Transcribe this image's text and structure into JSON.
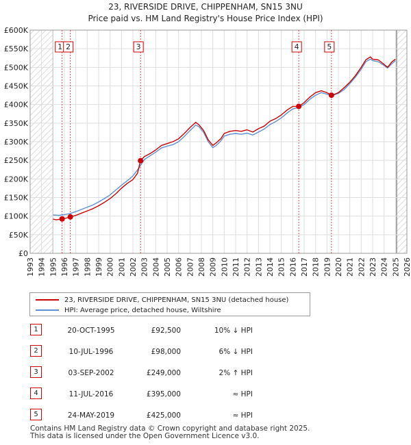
{
  "chart_data": {
    "type": "line",
    "title": [
      "23, RIVERSIDE DRIVE, CHIPPENHAM, SN15 3NU",
      "Price paid vs. HM Land Registry's House Price Index (HPI)"
    ],
    "xlim": [
      1993,
      2026
    ],
    "ylim": [
      0,
      600000
    ],
    "x_ticks": [
      "1993",
      "1994",
      "1995",
      "1996",
      "1997",
      "1998",
      "1999",
      "2000",
      "2001",
      "2002",
      "2003",
      "2004",
      "2005",
      "2006",
      "2007",
      "2008",
      "2009",
      "2010",
      "2011",
      "2012",
      "2013",
      "2014",
      "2015",
      "2016",
      "2017",
      "2018",
      "2019",
      "2020",
      "2021",
      "2022",
      "2023",
      "2024",
      "2025",
      "2026"
    ],
    "y_ticks": [
      {
        "value": 0,
        "label": "£0"
      },
      {
        "value": 50000,
        "label": "£50K"
      },
      {
        "value": 100000,
        "label": "£100K"
      },
      {
        "value": 150000,
        "label": "£150K"
      },
      {
        "value": 200000,
        "label": "£200K"
      },
      {
        "value": 250000,
        "label": "£250K"
      },
      {
        "value": 300000,
        "label": "£300K"
      },
      {
        "value": 350000,
        "label": "£350K"
      },
      {
        "value": 400000,
        "label": "£400K"
      },
      {
        "value": 450000,
        "label": "£450K"
      },
      {
        "value": 500000,
        "label": "£500K"
      },
      {
        "value": 550000,
        "label": "£550K"
      },
      {
        "value": 600000,
        "label": "£600K"
      }
    ],
    "hatched_before": 1995.0,
    "hatched_after": 2025.1,
    "series": [
      {
        "name": "23, RIVERSIDE DRIVE, CHIPPENHAM, SN15 3NU (detached house)",
        "color": "#cc0000",
        "x": [
          1995.0,
          1995.3,
          1995.8,
          1996.2,
          1996.52,
          1997.0,
          1997.5,
          1998.0,
          1998.5,
          1999.0,
          1999.5,
          2000.0,
          2000.5,
          2001.0,
          2001.5,
          2002.0,
          2002.4,
          2002.67,
          2003.0,
          2003.5,
          2004.0,
          2004.5,
          2005.0,
          2005.5,
          2006.0,
          2006.5,
          2007.0,
          2007.5,
          2007.8,
          2008.2,
          2008.6,
          2009.0,
          2009.3,
          2009.7,
          2010.0,
          2010.5,
          2011.0,
          2011.5,
          2012.0,
          2012.5,
          2013.0,
          2013.5,
          2014.0,
          2014.5,
          2015.0,
          2015.5,
          2016.0,
          2016.53,
          2017.0,
          2017.5,
          2018.0,
          2018.5,
          2019.0,
          2019.39,
          2019.7,
          2020.0,
          2020.5,
          2021.0,
          2021.5,
          2022.0,
          2022.4,
          2022.8,
          2023.0,
          2023.5,
          2024.0,
          2024.3,
          2024.7,
          2025.0
        ],
        "values": [
          92000,
          90000,
          92500,
          95000,
          98000,
          102000,
          108000,
          114000,
          120000,
          128000,
          137000,
          147000,
          160000,
          175000,
          188000,
          198000,
          215000,
          249000,
          260000,
          268000,
          278000,
          290000,
          295000,
          300000,
          308000,
          322000,
          338000,
          352000,
          345000,
          330000,
          305000,
          290000,
          297000,
          308000,
          322000,
          328000,
          330000,
          328000,
          332000,
          326000,
          335000,
          342000,
          355000,
          362000,
          372000,
          385000,
          395000,
          395000,
          405000,
          420000,
          432000,
          437000,
          432000,
          425000,
          428000,
          432000,
          445000,
          460000,
          478000,
          500000,
          520000,
          528000,
          522000,
          520000,
          508000,
          500000,
          515000,
          522000
        ]
      },
      {
        "name": "HPI: Average price, detached house, Wiltshire",
        "color": "#5b8fd1",
        "x": [
          1995.0,
          1995.5,
          1996.0,
          1996.5,
          1997.0,
          1997.5,
          1998.0,
          1998.5,
          1999.0,
          1999.5,
          2000.0,
          2000.5,
          2001.0,
          2001.5,
          2002.0,
          2002.5,
          2003.0,
          2003.5,
          2004.0,
          2004.5,
          2005.0,
          2005.5,
          2006.0,
          2006.5,
          2007.0,
          2007.5,
          2007.8,
          2008.2,
          2008.6,
          2009.0,
          2009.3,
          2009.7,
          2010.0,
          2010.5,
          2011.0,
          2011.5,
          2012.0,
          2012.5,
          2013.0,
          2013.5,
          2014.0,
          2014.5,
          2015.0,
          2015.5,
          2016.0,
          2016.5,
          2017.0,
          2017.5,
          2018.0,
          2018.5,
          2019.0,
          2019.5,
          2020.0,
          2020.5,
          2021.0,
          2021.5,
          2022.0,
          2022.4,
          2022.8,
          2023.0,
          2023.5,
          2024.0,
          2024.3,
          2024.7,
          2025.0
        ],
        "values": [
          103000,
          102000,
          104000,
          107000,
          112000,
          118000,
          124000,
          130000,
          138000,
          147000,
          157000,
          170000,
          183000,
          195000,
          208000,
          228000,
          252000,
          262000,
          272000,
          283000,
          288000,
          292000,
          300000,
          314000,
          330000,
          345000,
          340000,
          325000,
          300000,
          284000,
          290000,
          302000,
          315000,
          320000,
          322000,
          320000,
          323000,
          318000,
          326000,
          334000,
          346000,
          354000,
          364000,
          377000,
          388000,
          392000,
          400000,
          414000,
          425000,
          432000,
          428000,
          425000,
          430000,
          440000,
          456000,
          474000,
          495000,
          515000,
          522000,
          518000,
          515000,
          505000,
          498000,
          510000,
          518000
        ]
      }
    ],
    "sales": [
      {
        "num": "1",
        "x": 1995.8,
        "price": 92500,
        "date": "20-OCT-1995",
        "price_label": "£92,500",
        "hpi": "10% ↓ HPI"
      },
      {
        "num": "2",
        "x": 1996.52,
        "price": 98000,
        "date": "10-JUL-1996",
        "price_label": "£98,000",
        "hpi": "6% ↓ HPI"
      },
      {
        "num": "3",
        "x": 2002.67,
        "price": 249000,
        "date": "03-SEP-2002",
        "price_label": "£249,000",
        "hpi": "2% ↑ HPI"
      },
      {
        "num": "4",
        "x": 2016.53,
        "price": 395000,
        "date": "11-JUL-2016",
        "price_label": "£395,000",
        "hpi": "≈ HPI"
      },
      {
        "num": "5",
        "x": 2019.39,
        "price": 425000,
        "date": "24-MAY-2019",
        "price_label": "£425,000",
        "hpi": "≈ HPI"
      }
    ]
  },
  "legend": {
    "property_label": "23, RIVERSIDE DRIVE, CHIPPENHAM, SN15 3NU (detached house)",
    "hpi_label": "HPI: Average price, detached house, Wiltshire"
  },
  "footer": {
    "line1": "Contains HM Land Registry data © Crown copyright and database right 2025.",
    "line2": "This data is licensed under the Open Government Licence v3.0."
  },
  "colors": {
    "property_line": "#cc0000",
    "hpi_line": "#5b8fd1",
    "grid": "#dddddd",
    "sale_marker": "#cc0000"
  }
}
